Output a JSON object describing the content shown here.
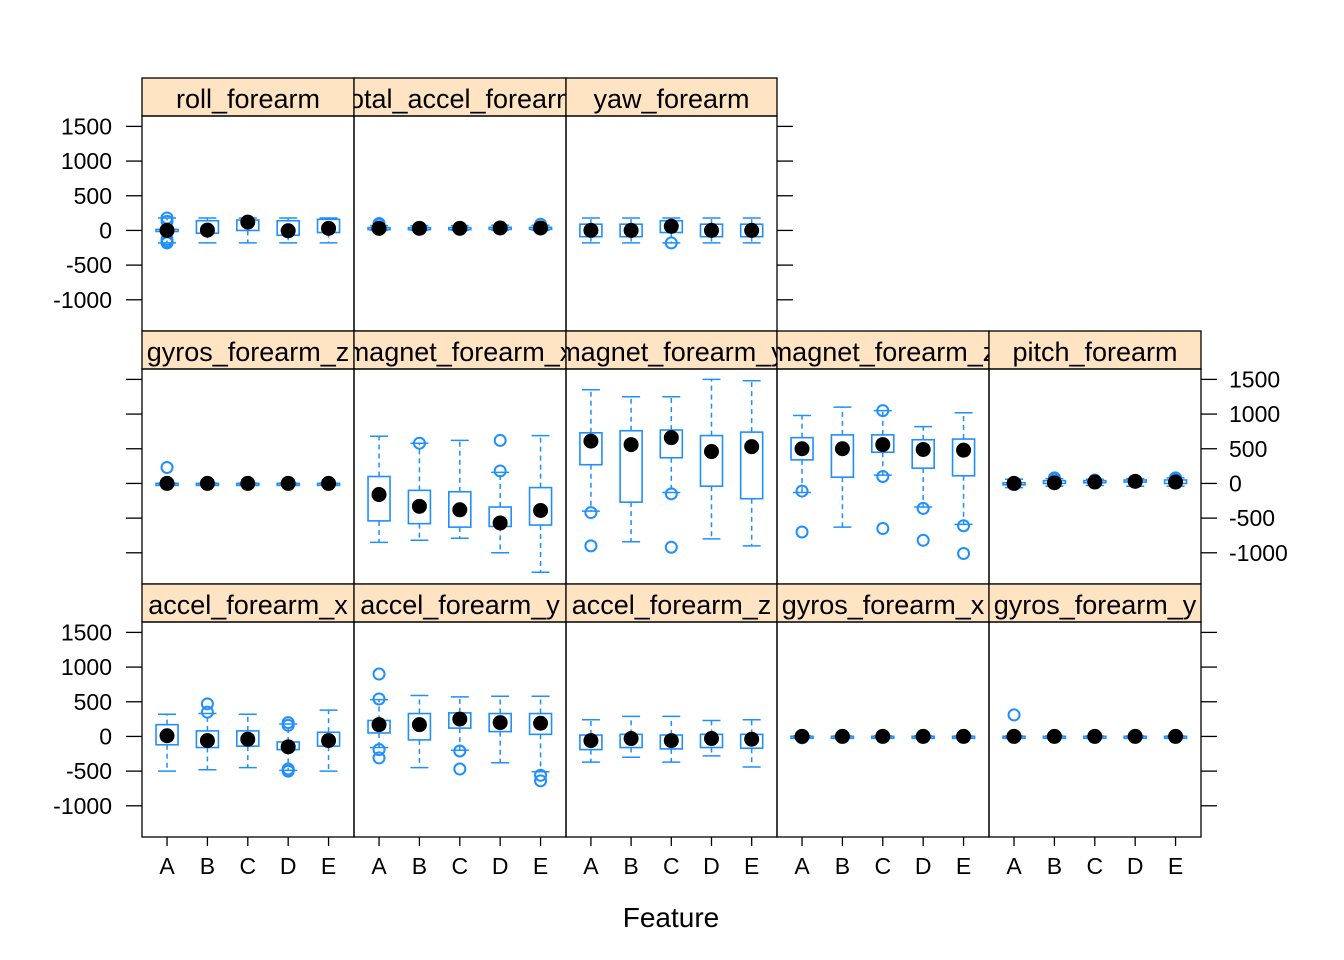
{
  "chart_data": {
    "type": "box",
    "xlabel": "Feature",
    "categories": [
      "A",
      "B",
      "C",
      "D",
      "E"
    ],
    "y_ticks": [
      -1000,
      -500,
      0,
      500,
      1000,
      1500
    ],
    "ylim": [
      -1450,
      1650
    ],
    "colors": {
      "box": "#1e8fff",
      "median_dot": "#000000",
      "strip": "#ffe4c4"
    },
    "panels": [
      {
        "title": "roll_forearm",
        "row": 0,
        "col": 0,
        "boxes": [
          {
            "min": -180,
            "q1": -15,
            "median": 0,
            "q3": 15,
            "max": 180,
            "outliers": [
              180,
              130,
              -130,
              -160,
              -180
            ]
          },
          {
            "min": -180,
            "q1": -40,
            "median": 5,
            "q3": 140,
            "max": 180,
            "outliers": []
          },
          {
            "min": -180,
            "q1": 0,
            "median": 120,
            "q3": 150,
            "max": 180,
            "outliers": []
          },
          {
            "min": -180,
            "q1": -70,
            "median": -5,
            "q3": 140,
            "max": 180,
            "outliers": []
          },
          {
            "min": -180,
            "q1": -30,
            "median": 30,
            "q3": 160,
            "max": 180,
            "outliers": []
          }
        ]
      },
      {
        "title": "total_accel_forearm",
        "row": 0,
        "col": 1,
        "boxes": [
          {
            "min": 0,
            "q1": 25,
            "median": 30,
            "q3": 40,
            "max": 70,
            "outliers": [
              80,
              100
            ]
          },
          {
            "min": 0,
            "q1": 20,
            "median": 30,
            "q3": 40,
            "max": 70,
            "outliers": []
          },
          {
            "min": 0,
            "q1": 25,
            "median": 30,
            "q3": 40,
            "max": 70,
            "outliers": []
          },
          {
            "min": 0,
            "q1": 25,
            "median": 35,
            "q3": 45,
            "max": 75,
            "outliers": []
          },
          {
            "min": 0,
            "q1": 25,
            "median": 35,
            "q3": 45,
            "max": 75,
            "outliers": [
              90
            ]
          }
        ]
      },
      {
        "title": "yaw_forearm",
        "row": 0,
        "col": 2,
        "boxes": [
          {
            "min": -180,
            "q1": -90,
            "median": 0,
            "q3": 90,
            "max": 180,
            "outliers": []
          },
          {
            "min": -180,
            "q1": -90,
            "median": 0,
            "q3": 90,
            "max": 180,
            "outliers": []
          },
          {
            "min": -180,
            "q1": -30,
            "median": 60,
            "q3": 140,
            "max": 180,
            "outliers": [
              -180
            ]
          },
          {
            "min": -180,
            "q1": -90,
            "median": 0,
            "q3": 90,
            "max": 180,
            "outliers": []
          },
          {
            "min": -180,
            "q1": -90,
            "median": 0,
            "q3": 90,
            "max": 180,
            "outliers": []
          }
        ]
      },
      {
        "title": "gyros_forearm_z",
        "row": 1,
        "col": 0,
        "boxes": [
          {
            "min": -5,
            "q1": -1,
            "median": 0,
            "q3": 1,
            "max": 5,
            "outliers": [
              230
            ]
          },
          {
            "min": -5,
            "q1": -1,
            "median": 0,
            "q3": 1,
            "max": 5,
            "outliers": []
          },
          {
            "min": -5,
            "q1": -1,
            "median": 0,
            "q3": 1,
            "max": 5,
            "outliers": []
          },
          {
            "min": -5,
            "q1": -1,
            "median": 0,
            "q3": 1,
            "max": 5,
            "outliers": []
          },
          {
            "min": -5,
            "q1": -1,
            "median": 0,
            "q3": 1,
            "max": 5,
            "outliers": []
          }
        ]
      },
      {
        "title": "magnet_forearm_x",
        "row": 1,
        "col": 1,
        "boxes": [
          {
            "min": -850,
            "q1": -540,
            "median": -160,
            "q3": 100,
            "max": 680,
            "outliers": []
          },
          {
            "min": -820,
            "q1": -580,
            "median": -330,
            "q3": -100,
            "max": 580,
            "outliers": [
              580
            ]
          },
          {
            "min": -790,
            "q1": -630,
            "median": -380,
            "q3": -120,
            "max": 620,
            "outliers": []
          },
          {
            "min": -1000,
            "q1": -620,
            "median": -570,
            "q3": -340,
            "max": 160,
            "outliers": [
              180,
              620
            ]
          },
          {
            "min": -1280,
            "q1": -600,
            "median": -390,
            "q3": -60,
            "max": 690,
            "outliers": []
          }
        ]
      },
      {
        "title": "magnet_forearm_y",
        "row": 1,
        "col": 2,
        "boxes": [
          {
            "min": -400,
            "q1": 270,
            "median": 610,
            "q3": 730,
            "max": 1350,
            "outliers": [
              -420,
              -900
            ]
          },
          {
            "min": -840,
            "q1": -270,
            "median": 560,
            "q3": 760,
            "max": 1250,
            "outliers": []
          },
          {
            "min": -130,
            "q1": 370,
            "median": 660,
            "q3": 770,
            "max": 1250,
            "outliers": [
              -150,
              -920
            ]
          },
          {
            "min": -800,
            "q1": -40,
            "median": 460,
            "q3": 690,
            "max": 1500,
            "outliers": []
          },
          {
            "min": -900,
            "q1": -220,
            "median": 530,
            "q3": 740,
            "max": 1480,
            "outliers": []
          }
        ]
      },
      {
        "title": "magnet_forearm_z",
        "row": 1,
        "col": 3,
        "boxes": [
          {
            "min": -130,
            "q1": 340,
            "median": 500,
            "q3": 660,
            "max": 980,
            "outliers": [
              -110,
              -700
            ]
          },
          {
            "min": -630,
            "q1": 90,
            "median": 500,
            "q3": 700,
            "max": 1100,
            "outliers": []
          },
          {
            "min": 120,
            "q1": 450,
            "median": 560,
            "q3": 700,
            "max": 1050,
            "outliers": [
              100,
              -650,
              1050
            ]
          },
          {
            "min": -340,
            "q1": 220,
            "median": 490,
            "q3": 630,
            "max": 820,
            "outliers": [
              -360,
              -820
            ]
          },
          {
            "min": -590,
            "q1": 110,
            "median": 480,
            "q3": 640,
            "max": 1020,
            "outliers": [
              -610,
              -1010
            ]
          }
        ]
      },
      {
        "title": "pitch_forearm",
        "row": 1,
        "col": 4,
        "boxes": [
          {
            "min": -60,
            "q1": -20,
            "median": 0,
            "q3": 10,
            "max": 60,
            "outliers": []
          },
          {
            "min": -40,
            "q1": 0,
            "median": 10,
            "q3": 40,
            "max": 70,
            "outliers": [
              80,
              60
            ]
          },
          {
            "min": -30,
            "q1": 10,
            "median": 20,
            "q3": 40,
            "max": 60,
            "outliers": [
              50
            ]
          },
          {
            "min": -40,
            "q1": 20,
            "median": 30,
            "q3": 50,
            "max": 70,
            "outliers": []
          },
          {
            "min": -40,
            "q1": 0,
            "median": 20,
            "q3": 50,
            "max": 80,
            "outliers": [
              80,
              60
            ]
          }
        ]
      },
      {
        "title": "accel_forearm_x",
        "row": 2,
        "col": 0,
        "boxes": [
          {
            "min": -500,
            "q1": -120,
            "median": 10,
            "q3": 170,
            "max": 320,
            "outliers": []
          },
          {
            "min": -480,
            "q1": -160,
            "median": -60,
            "q3": 80,
            "max": 330,
            "outliers": [
              470,
              350
            ]
          },
          {
            "min": -450,
            "q1": -140,
            "median": -40,
            "q3": 80,
            "max": 320,
            "outliers": []
          },
          {
            "min": -490,
            "q1": -190,
            "median": -150,
            "q3": -80,
            "max": 180,
            "outliers": [
              200,
              160,
              -470,
              -500
            ]
          },
          {
            "min": -500,
            "q1": -140,
            "median": -60,
            "q3": 60,
            "max": 380,
            "outliers": []
          }
        ]
      },
      {
        "title": "accel_forearm_y",
        "row": 2,
        "col": 1,
        "boxes": [
          {
            "min": -160,
            "q1": 50,
            "median": 170,
            "q3": 230,
            "max": 530,
            "outliers": [
              900,
              540,
              -190,
              -310
            ]
          },
          {
            "min": -450,
            "q1": -50,
            "median": 170,
            "q3": 330,
            "max": 590,
            "outliers": []
          },
          {
            "min": -200,
            "q1": 120,
            "median": 250,
            "q3": 340,
            "max": 570,
            "outliers": [
              -210,
              -470
            ]
          },
          {
            "min": -380,
            "q1": 70,
            "median": 200,
            "q3": 330,
            "max": 580,
            "outliers": []
          },
          {
            "min": -510,
            "q1": 30,
            "median": 190,
            "q3": 330,
            "max": 580,
            "outliers": [
              -560,
              -640
            ]
          }
        ]
      },
      {
        "title": "accel_forearm_z",
        "row": 2,
        "col": 2,
        "boxes": [
          {
            "min": -370,
            "q1": -190,
            "median": -60,
            "q3": 20,
            "max": 240,
            "outliers": []
          },
          {
            "min": -300,
            "q1": -160,
            "median": -30,
            "q3": 30,
            "max": 290,
            "outliers": []
          },
          {
            "min": -370,
            "q1": -180,
            "median": -60,
            "q3": 20,
            "max": 290,
            "outliers": []
          },
          {
            "min": -280,
            "q1": -160,
            "median": -30,
            "q3": 30,
            "max": 230,
            "outliers": []
          },
          {
            "min": -440,
            "q1": -170,
            "median": -40,
            "q3": 30,
            "max": 240,
            "outliers": []
          }
        ]
      },
      {
        "title": "gyros_forearm_x",
        "row": 2,
        "col": 3,
        "boxes": [
          {
            "min": -10,
            "q1": -2,
            "median": 0,
            "q3": 2,
            "max": 10,
            "outliers": [
              -20
            ]
          },
          {
            "min": -10,
            "q1": -2,
            "median": 0,
            "q3": 2,
            "max": 10,
            "outliers": []
          },
          {
            "min": -10,
            "q1": -2,
            "median": 0,
            "q3": 2,
            "max": 10,
            "outliers": []
          },
          {
            "min": -10,
            "q1": -2,
            "median": 0,
            "q3": 2,
            "max": 10,
            "outliers": []
          },
          {
            "min": -10,
            "q1": -2,
            "median": 0,
            "q3": 2,
            "max": 10,
            "outliers": []
          }
        ]
      },
      {
        "title": "gyros_forearm_y",
        "row": 2,
        "col": 4,
        "boxes": [
          {
            "min": -8,
            "q1": -2,
            "median": 0,
            "q3": 2,
            "max": 8,
            "outliers": [
              310
            ]
          },
          {
            "min": -8,
            "q1": -2,
            "median": 0,
            "q3": 2,
            "max": 8,
            "outliers": []
          },
          {
            "min": -8,
            "q1": -2,
            "median": 0,
            "q3": 2,
            "max": 8,
            "outliers": []
          },
          {
            "min": -8,
            "q1": -2,
            "median": 0,
            "q3": 2,
            "max": 8,
            "outliers": []
          },
          {
            "min": -8,
            "q1": -2,
            "median": 0,
            "q3": 2,
            "max": 8,
            "outliers": []
          }
        ]
      }
    ]
  }
}
